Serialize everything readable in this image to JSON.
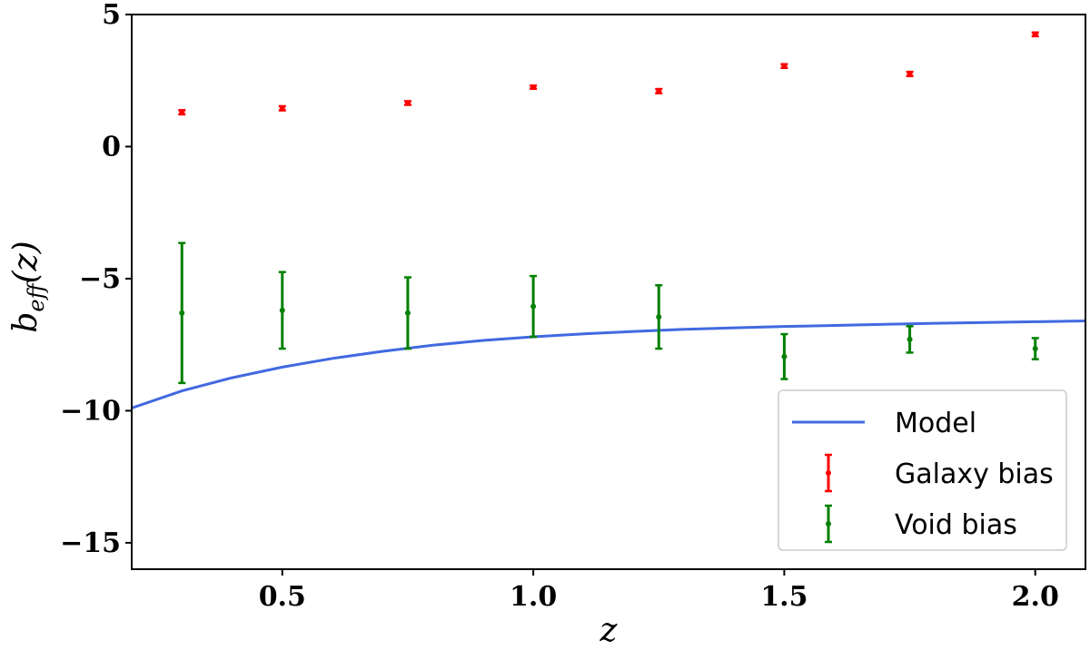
{
  "chart_data": {
    "type": "scatter",
    "title": "",
    "xlabel": "z",
    "ylabel": "b",
    "ylabel_sub": "eff",
    "ylabel_tail": "(z)",
    "xlim": [
      0.2,
      2.1
    ],
    "ylim": [
      -16,
      5
    ],
    "xticks": [
      0.5,
      1.0,
      1.5,
      2.0
    ],
    "xtick_labels": [
      "0.5",
      "1.0",
      "1.5",
      "2.0"
    ],
    "yticks": [
      5,
      0,
      -5,
      -10,
      -15
    ],
    "ytick_labels": [
      "5",
      "0",
      "−5",
      "−10",
      "−15"
    ],
    "grid": false,
    "legend_position": "bottom-right",
    "series": [
      {
        "name": "Model",
        "kind": "line",
        "color": "#4169e1",
        "x": [
          0.2,
          0.3,
          0.4,
          0.5,
          0.6,
          0.7,
          0.8,
          0.9,
          1.0,
          1.1,
          1.2,
          1.3,
          1.4,
          1.5,
          1.6,
          1.7,
          1.8,
          1.9,
          2.0,
          2.1
        ],
        "y": [
          -9.9,
          -9.25,
          -8.75,
          -8.35,
          -8.02,
          -7.75,
          -7.52,
          -7.34,
          -7.2,
          -7.09,
          -7.0,
          -6.92,
          -6.86,
          -6.81,
          -6.77,
          -6.73,
          -6.69,
          -6.66,
          -6.63,
          -6.6
        ]
      },
      {
        "name": "Galaxy bias",
        "kind": "errorbar",
        "color": "#ff0000",
        "x": [
          0.3,
          0.5,
          0.75,
          1.0,
          1.25,
          1.5,
          1.75,
          2.0
        ],
        "y": [
          1.3,
          1.45,
          1.65,
          2.25,
          2.1,
          3.05,
          2.75,
          4.25
        ],
        "yerr": [
          0.08,
          0.08,
          0.07,
          0.06,
          0.08,
          0.07,
          0.08,
          0.07
        ]
      },
      {
        "name": "Void bias",
        "kind": "errorbar",
        "color": "#008000",
        "x": [
          0.3,
          0.5,
          0.75,
          1.0,
          1.25,
          1.5,
          1.75,
          2.0
        ],
        "y": [
          -6.3,
          -6.2,
          -6.3,
          -6.05,
          -6.45,
          -7.95,
          -7.3,
          -7.65
        ],
        "yerr": [
          2.65,
          1.45,
          1.35,
          1.15,
          1.2,
          0.85,
          0.5,
          0.4
        ]
      }
    ]
  }
}
